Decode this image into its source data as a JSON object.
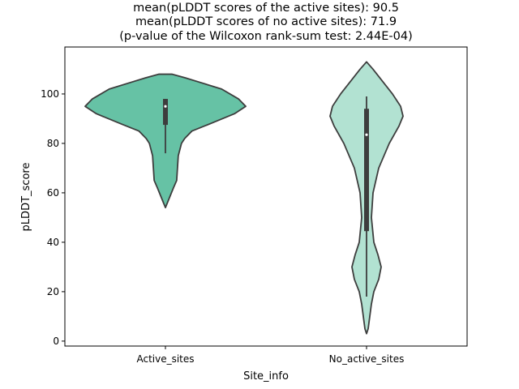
{
  "chart_data": {
    "type": "violin",
    "title_lines": [
      "mean(pLDDT scores of the active sites): 90.5",
      "mean(pLDDT scores of no active sites): 71.9",
      "(p-value of the Wilcoxon rank-sum test: 2.44E-04)"
    ],
    "xlabel": "Site_info",
    "ylabel": "pLDDT_score",
    "ylim": [
      -2,
      119
    ],
    "yticks": [
      0,
      20,
      40,
      60,
      80,
      100
    ],
    "categories": [
      "Active_sites",
      "No_active_sites"
    ],
    "violins": [
      {
        "name": "Active_sites",
        "color": "#66c2a5",
        "density": [
          [
            108,
            0.08
          ],
          [
            106.5,
            0.25
          ],
          [
            105,
            0.4
          ],
          [
            102,
            0.7
          ],
          [
            98,
            0.91
          ],
          [
            95,
            1.0
          ],
          [
            92,
            0.86
          ],
          [
            88,
            0.56
          ],
          [
            85,
            0.33
          ],
          [
            82,
            0.24
          ],
          [
            80,
            0.2
          ],
          [
            75,
            0.16
          ],
          [
            70,
            0.15
          ],
          [
            65,
            0.14
          ],
          [
            62,
            0.1
          ],
          [
            58,
            0.05
          ],
          [
            54,
            0.0
          ]
        ],
        "box": {
          "whisker_low": 76,
          "q1": 87.5,
          "median": 95,
          "q3": 98,
          "whisker_high": 98
        }
      },
      {
        "name": "No_active_sites",
        "color": "#b2e2d2",
        "density": [
          [
            113,
            0.0
          ],
          [
            110,
            0.08
          ],
          [
            105,
            0.2
          ],
          [
            100,
            0.32
          ],
          [
            95,
            0.42
          ],
          [
            91,
            0.45
          ],
          [
            87,
            0.4
          ],
          [
            80,
            0.28
          ],
          [
            70,
            0.15
          ],
          [
            60,
            0.08
          ],
          [
            50,
            0.06
          ],
          [
            40,
            0.09
          ],
          [
            35,
            0.14
          ],
          [
            30,
            0.18
          ],
          [
            25,
            0.15
          ],
          [
            20,
            0.09
          ],
          [
            15,
            0.06
          ],
          [
            10,
            0.04
          ],
          [
            5,
            0.02
          ],
          [
            3,
            0.0
          ]
        ],
        "box": {
          "whisker_low": 18,
          "q1": 44.5,
          "median": 83.5,
          "q3": 94,
          "whisker_high": 99
        }
      }
    ]
  }
}
